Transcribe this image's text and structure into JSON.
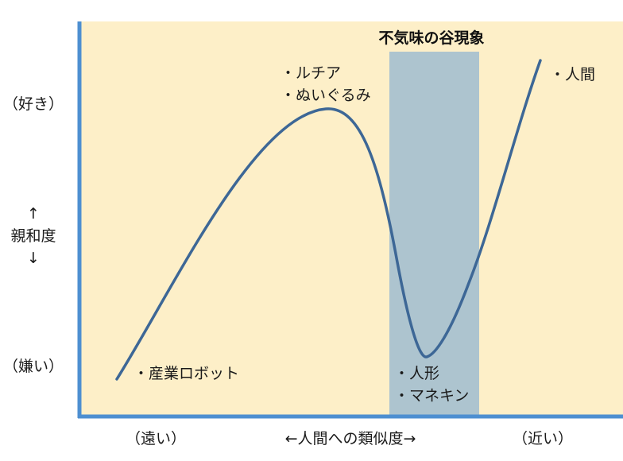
{
  "title": "不気味の谷現象",
  "y_axis": {
    "top": "（好き）",
    "arrow_up": "↑",
    "label": "親和度",
    "arrow_down": "↓",
    "bottom": "（嫌い）"
  },
  "x_axis": {
    "left": "（遠い）",
    "label": "←人間への類似度→",
    "right": "（近い）"
  },
  "annotations": {
    "peak_item_1": "・ルチア",
    "peak_item_2": "・ぬいぐるみ",
    "human": "・人間",
    "valley_item_1": "・人形",
    "valley_item_2": "・マネキン",
    "robot": "・産業ロボット"
  },
  "colors": {
    "background": "#fdefc8",
    "valley_band": "#adc4cf",
    "curve": "#3d6796",
    "axis": "#4d8fd1"
  }
}
